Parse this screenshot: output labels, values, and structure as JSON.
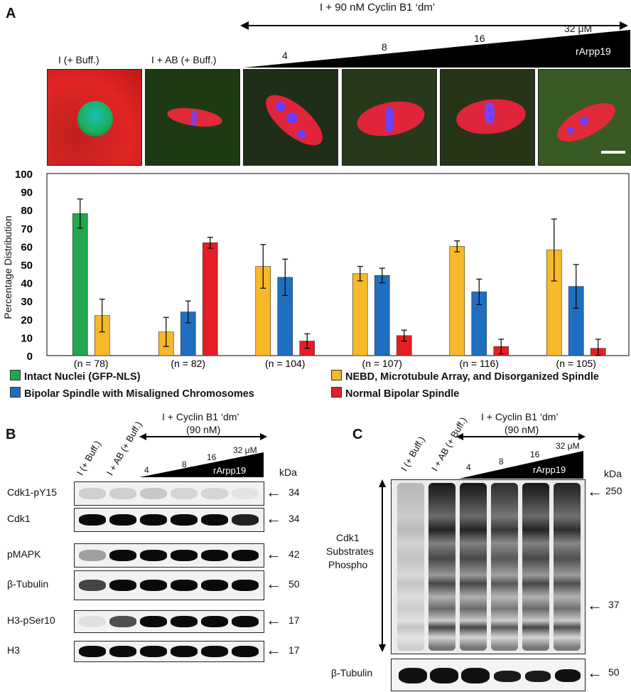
{
  "panelA": {
    "letter": "A",
    "top_header": "I + 90 nM Cyclin B1 ‘dm’",
    "image_labels": [
      "I (+ Buff.)",
      "I + AB (+ Buff.)"
    ],
    "conc_labels": [
      "4",
      "8",
      "16",
      "32 μM"
    ],
    "wedge_label": "rArpp19"
  },
  "legend": {
    "items": [
      {
        "label": "Intact Nuclei (GFP-NLS)",
        "color": "#22a650"
      },
      {
        "label": "NEBD, Microtubule Array, and Disorganized Spindle",
        "color": "#f7b929"
      },
      {
        "label": "Bipolar Spindle with Misaligned Chromosomes",
        "color": "#1e6fc0"
      },
      {
        "label": "Normal Bipolar Spindle",
        "color": "#e41e26"
      }
    ]
  },
  "chart_data": {
    "type": "bar",
    "ylabel": "Percentage Distribution",
    "ylim": [
      0,
      100
    ],
    "yticks": [
      "0",
      "10",
      "20",
      "30",
      "40",
      "50",
      "60",
      "70",
      "80",
      "90",
      "100"
    ],
    "categories": [
      "I (+ Buff.)",
      "I + AB (+ Buff.)",
      "4",
      "8",
      "16",
      "32 μM"
    ],
    "n_labels": [
      "(n  =  78)",
      "(n  =  82)",
      "(n  =  104)",
      "(n  =  107)",
      "(n  =  116)",
      "(n  =  105)"
    ],
    "series": [
      {
        "name": "Intact Nuclei (GFP-NLS)",
        "color": "#22a650",
        "values": [
          78,
          null,
          null,
          null,
          null,
          null
        ],
        "errors": [
          8,
          null,
          null,
          null,
          null,
          null
        ]
      },
      {
        "name": "NEBD, Microtubule Array, and Disorganized Spindle",
        "color": "#f7b929",
        "values": [
          22,
          13,
          49,
          45,
          60,
          58
        ],
        "errors": [
          9,
          8,
          12,
          4,
          3,
          17
        ]
      },
      {
        "name": "Bipolar Spindle with Misaligned Chromosomes",
        "color": "#1e6fc0",
        "values": [
          null,
          24,
          43,
          44,
          35,
          38
        ],
        "errors": [
          null,
          6,
          10,
          4,
          7,
          12
        ]
      },
      {
        "name": "Normal Bipolar Spindle",
        "color": "#e41e26",
        "values": [
          null,
          62,
          8,
          11,
          5,
          4
        ],
        "errors": [
          null,
          3,
          4,
          3,
          4,
          5
        ]
      }
    ]
  },
  "panelB": {
    "letter": "B",
    "header": "I + Cyclin B1 ‘dm’",
    "header_sub": "(90 nM)",
    "lanes": [
      "I (+ Buff.)",
      "I + AB (+ Buff.)"
    ],
    "conc_labels": [
      "4",
      "8",
      "16",
      "32 μM"
    ],
    "wedge_label": "rArpp19",
    "kda_label": "kDa",
    "blots": [
      {
        "label": "Cdk1-pY15",
        "kda": "34"
      },
      {
        "label": "Cdk1",
        "kda": "34"
      },
      {
        "label": "pMAPK",
        "kda": "42"
      },
      {
        "label": "β-Tubulin",
        "kda": "50"
      },
      {
        "label": "H3-pSer10",
        "kda": "17"
      },
      {
        "label": "H3",
        "kda": "17"
      }
    ]
  },
  "panelC": {
    "letter": "C",
    "header": "I + Cyclin B1 ‘dm’",
    "header_sub": "(90 nM)",
    "lanes": [
      "I (+ Buff.)",
      "I + AB (+ Buff.)"
    ],
    "conc_labels": [
      "4",
      "8",
      "16",
      "32 μM"
    ],
    "wedge_label": "rArpp19",
    "kda_label": "kDa",
    "substrate_label_1": "Cdk1",
    "substrate_label_2": "Substrates",
    "substrate_label_3": "Phospho",
    "marker_top": "250",
    "marker_bottom": "37",
    "tubulin_label": "β-Tubulin",
    "tubulin_kda": "50"
  }
}
